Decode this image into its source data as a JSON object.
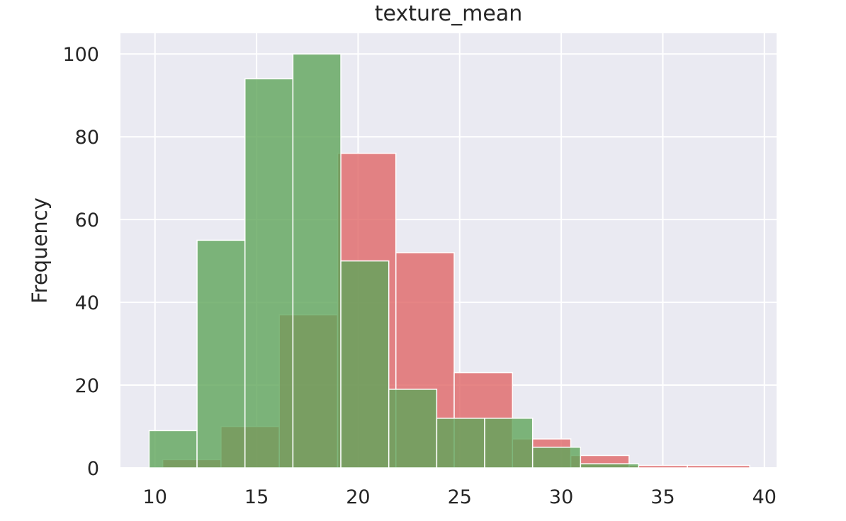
{
  "chart_data": {
    "type": "histogram",
    "title": "texture_mean",
    "xlabel": "",
    "ylabel": "Frequency",
    "xlim": [
      8.3,
      40.6
    ],
    "ylim": [
      0,
      105
    ],
    "grid": true,
    "xticks": [
      10,
      15,
      20,
      25,
      30,
      35,
      40
    ],
    "yticks": [
      0,
      20,
      40,
      60,
      80,
      100
    ],
    "series": [
      {
        "color": "#e06666",
        "bins": [
          {
            "x0": 10.38,
            "x1": 13.25,
            "value": 2
          },
          {
            "x0": 13.25,
            "x1": 16.12,
            "value": 10
          },
          {
            "x0": 16.12,
            "x1": 18.99,
            "value": 37
          },
          {
            "x0": 18.99,
            "x1": 21.86,
            "value": 76
          },
          {
            "x0": 21.86,
            "x1": 24.73,
            "value": 52
          },
          {
            "x0": 24.73,
            "x1": 27.6,
            "value": 23
          },
          {
            "x0": 27.6,
            "x1": 30.47,
            "value": 7
          },
          {
            "x0": 30.47,
            "x1": 33.34,
            "value": 3
          },
          {
            "x0": 33.34,
            "x1": 36.21,
            "value": 0.6
          },
          {
            "x0": 36.21,
            "x1": 39.28,
            "value": 0.6
          }
        ]
      },
      {
        "color": "#5fa55a",
        "bins": [
          {
            "x0": 9.71,
            "x1": 12.07,
            "value": 9
          },
          {
            "x0": 12.07,
            "x1": 14.43,
            "value": 55
          },
          {
            "x0": 14.43,
            "x1": 16.79,
            "value": 94
          },
          {
            "x0": 16.79,
            "x1": 19.15,
            "value": 100
          },
          {
            "x0": 19.15,
            "x1": 21.51,
            "value": 50
          },
          {
            "x0": 21.51,
            "x1": 23.87,
            "value": 19
          },
          {
            "x0": 23.87,
            "x1": 26.23,
            "value": 12
          },
          {
            "x0": 26.23,
            "x1": 28.59,
            "value": 12
          },
          {
            "x0": 28.59,
            "x1": 30.95,
            "value": 5
          },
          {
            "x0": 30.95,
            "x1": 33.81,
            "value": 1
          }
        ]
      }
    ]
  }
}
